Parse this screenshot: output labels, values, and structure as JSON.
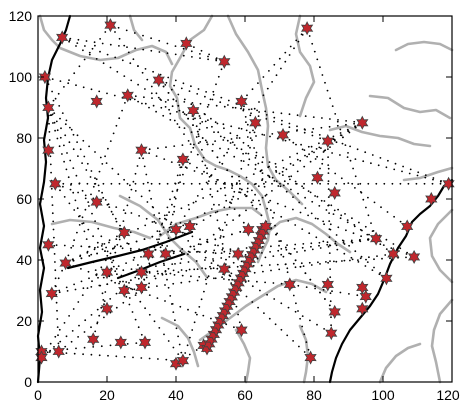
{
  "map": {
    "x_ticks": [
      "0",
      "20",
      "40",
      "60",
      "80",
      "100",
      "120"
    ],
    "y_ticks": [
      "0",
      "20",
      "40",
      "60",
      "80",
      "100",
      "120"
    ],
    "xlim": [
      0,
      120
    ],
    "ylim": [
      0,
      120
    ],
    "colors": {
      "boundary_lines": "#b0b0b0",
      "fault_lines": "#000000",
      "stations_fill": "#c0272d",
      "stations_outline": "#404040",
      "ray_dots": "#000000"
    },
    "stations": [
      [
        7,
        113
      ],
      [
        21,
        117
      ],
      [
        43,
        111
      ],
      [
        78,
        116
      ],
      [
        2,
        100
      ],
      [
        3,
        90
      ],
      [
        17,
        92
      ],
      [
        26,
        94
      ],
      [
        35,
        99
      ],
      [
        45,
        89
      ],
      [
        54,
        105
      ],
      [
        59,
        92
      ],
      [
        63,
        85
      ],
      [
        71,
        81
      ],
      [
        84,
        79
      ],
      [
        94,
        85
      ],
      [
        3,
        76
      ],
      [
        30,
        76
      ],
      [
        42,
        73
      ],
      [
        81,
        67
      ],
      [
        86,
        62
      ],
      [
        5,
        65
      ],
      [
        17,
        59
      ],
      [
        119,
        65
      ],
      [
        114,
        60
      ],
      [
        107,
        51
      ],
      [
        98,
        47
      ],
      [
        3,
        45
      ],
      [
        8,
        39
      ],
      [
        25,
        49
      ],
      [
        32,
        42
      ],
      [
        37,
        42
      ],
      [
        40,
        50
      ],
      [
        44,
        51
      ],
      [
        54,
        37
      ],
      [
        58,
        42
      ],
      [
        61,
        50
      ],
      [
        65,
        50
      ],
      [
        4,
        29
      ],
      [
        20,
        36
      ],
      [
        20,
        24
      ],
      [
        25,
        30
      ],
      [
        30,
        36
      ],
      [
        30,
        31
      ],
      [
        73,
        32
      ],
      [
        84,
        32
      ],
      [
        94,
        31
      ],
      [
        95,
        28
      ],
      [
        103,
        42
      ],
      [
        109,
        41
      ],
      [
        101,
        34
      ],
      [
        86,
        23
      ],
      [
        94,
        24
      ],
      [
        85,
        16
      ],
      [
        59,
        17
      ],
      [
        1,
        10
      ],
      [
        1,
        8
      ],
      [
        6,
        10
      ],
      [
        16,
        14
      ],
      [
        24,
        13
      ],
      [
        31,
        13
      ],
      [
        40,
        6
      ],
      [
        42,
        7
      ],
      [
        48,
        12
      ],
      [
        79,
        8
      ]
    ],
    "red_belt": {
      "start": [
        49,
        11
      ],
      "end": [
        66,
        51
      ],
      "count": 27
    }
  }
}
